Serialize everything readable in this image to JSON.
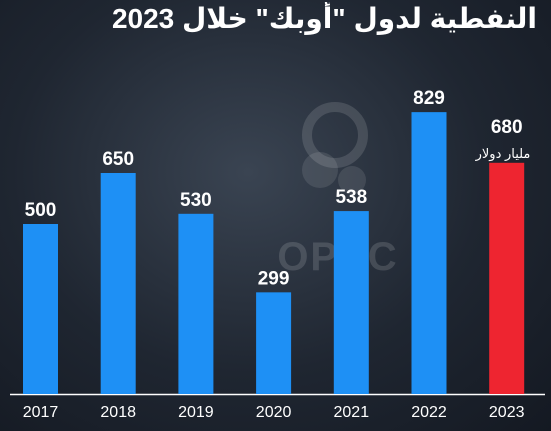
{
  "title": "النفطية لدول \"أوبك\" خلال 2023",
  "unit_label": "مليار دولار",
  "watermark": "OPEC",
  "colors": {
    "bar": "#1e90f5",
    "highlight": "#ee2530",
    "text": "#ffffff",
    "baseline": "#ffffff"
  },
  "chart_data": {
    "type": "bar",
    "categories": [
      "2017",
      "2018",
      "2019",
      "2020",
      "2021",
      "2022",
      "2023"
    ],
    "values": [
      500,
      650,
      530,
      299,
      538,
      829,
      680
    ],
    "highlight_category": "2023",
    "title": "",
    "xlabel": "",
    "ylabel": "",
    "ylim": [
      0,
      900
    ],
    "grid": false,
    "legend": "none"
  }
}
